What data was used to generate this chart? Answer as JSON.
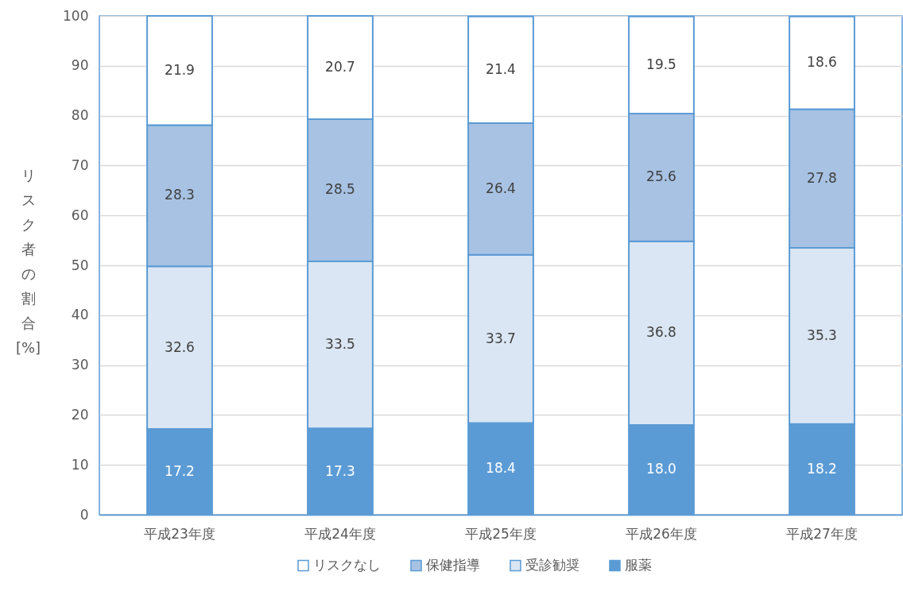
{
  "chart_data": {
    "type": "bar",
    "stacked": true,
    "ylabel": "リスク者の割合[%]",
    "categories": [
      "平成23年度",
      "平成24年度",
      "平成25年度",
      "平成26年度",
      "平成27年度"
    ],
    "series": [
      {
        "name": "服薬",
        "color": "#5b9bd5",
        "values": [
          17.2,
          17.3,
          18.4,
          18.0,
          18.2
        ],
        "value_labels": [
          "17.2",
          "17.3",
          "18.4",
          "18.0",
          "18.2"
        ]
      },
      {
        "name": "受診勧奨",
        "color": "#dae6f3",
        "values": [
          32.6,
          33.5,
          33.7,
          36.8,
          35.3
        ],
        "value_labels": [
          "32.6",
          "33.5",
          "33.7",
          "36.8",
          "35.3"
        ]
      },
      {
        "name": "保健指導",
        "color": "#a7c2e3",
        "values": [
          28.3,
          28.5,
          26.4,
          25.6,
          27.8
        ],
        "value_labels": [
          "28.3",
          "28.5",
          "26.4",
          "25.6",
          "27.8"
        ]
      },
      {
        "name": "リスクなし",
        "color": "#ffffff",
        "values": [
          21.9,
          20.7,
          21.4,
          19.5,
          18.6
        ],
        "value_labels": [
          "21.9",
          "20.7",
          "21.4",
          "19.5",
          "18.6"
        ]
      }
    ],
    "ylim": [
      0,
      100
    ],
    "yticks": [
      0,
      10,
      20,
      30,
      40,
      50,
      60,
      70,
      80,
      90,
      100
    ],
    "grid": "y",
    "legend": "bottom"
  }
}
